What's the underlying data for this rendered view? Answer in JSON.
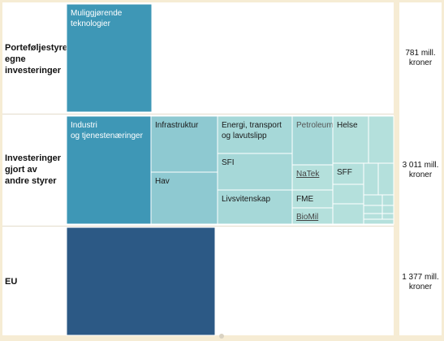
{
  "chart_data": {
    "type": "treemap",
    "rows": [
      {
        "label": "Porteføljestyrets egne investeringer",
        "total": "781 mill. kroner",
        "cells": [
          {
            "label": "Muliggjørende teknologier",
            "color": "#3e97b6",
            "text_color": "#ffffff"
          }
        ]
      },
      {
        "label": "Investeringer gjort av andre styrer",
        "total": "3 011 mill. kroner",
        "cells": [
          {
            "label": "Industri og tjenestenæringer",
            "color": "#3e97b6",
            "text_color": "#ffffff"
          },
          {
            "label": "Infrastruktur",
            "color": "#8ec9d1",
            "text_color": "#1a1a1a"
          },
          {
            "label": "Hav",
            "color": "#8ec9d1",
            "text_color": "#1a1a1a"
          },
          {
            "label": "Energi, transport og lavutslipp",
            "color": "#a6d8d8",
            "text_color": "#1a1a1a"
          },
          {
            "label": "SFI",
            "color": "#a6d8d8",
            "text_color": "#1a1a1a"
          },
          {
            "label": "Livsvitenskap",
            "color": "#a6d8d8",
            "text_color": "#1a1a1a"
          },
          {
            "label": "Petroleum",
            "color": "#a6d8d8",
            "text_color": "#555555"
          },
          {
            "label": "NaTek",
            "color": "#b4e0dc",
            "text_color": "#444444"
          },
          {
            "label": "FME",
            "color": "#b4e0dc",
            "text_color": "#1a1a1a"
          },
          {
            "label": "BioMil",
            "color": "#b4e0dc",
            "text_color": "#444444"
          },
          {
            "label": "Helse",
            "color": "#b4e0dc",
            "text_color": "#1a1a1a"
          },
          {
            "label": "SFF",
            "color": "#b4e0dc",
            "text_color": "#1a1a1a"
          }
        ]
      },
      {
        "label": "EU",
        "total": "1 377 mill. kroner",
        "cells": [
          {
            "label": "",
            "color": "#2c5985",
            "text_color": "#ffffff"
          }
        ]
      }
    ]
  }
}
